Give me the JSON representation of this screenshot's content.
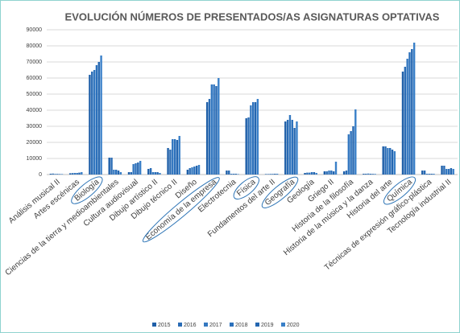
{
  "chart_data": {
    "type": "bar",
    "title": "EVOLUCIÓN NÚMEROS DE PRESENTADOS/AS ASIGNATURAS OPTATIVAS",
    "categories": [
      "Análisis musical II",
      "Artes escénicas",
      "Biología",
      "Ciencias de la tierra y medioambientales",
      "Cultura audiovisual",
      "Dibujo artístico II",
      "Dibujo técnico II",
      "Diseño",
      "Economía de la empresa",
      "Electrotecnia",
      "Física",
      "Fundamentos del arte II",
      "Geografía",
      "Geología",
      "Griego II",
      "Historia de la filosofía",
      "Historia de la música y la danza",
      "Historia del arte",
      "Química",
      "Técnicas de expresión gráfico-plástica",
      "Tecnología industrial II"
    ],
    "series": [
      {
        "name": "2015",
        "color": "#1f5fa8",
        "values": [
          500,
          800,
          62000,
          10500,
          1500,
          3500,
          16500,
          3000,
          45000,
          2500,
          35000,
          300,
          33000,
          1000,
          2000,
          2000,
          500,
          17500,
          64000,
          2500,
          5500
        ]
      },
      {
        "name": "2016",
        "color": "#2a6cb5",
        "values": [
          600,
          900,
          64000,
          10500,
          1500,
          4000,
          15500,
          4000,
          47000,
          2500,
          35500,
          300,
          34000,
          1200,
          2000,
          2500,
          500,
          17500,
          67000,
          2500,
          5500
        ]
      },
      {
        "name": "2017",
        "color": "#3478c0",
        "values": [
          400,
          1000,
          65000,
          3000,
          6500,
          1500,
          22000,
          4500,
          56000,
          500,
          43000,
          400,
          37000,
          1200,
          2500,
          25000,
          600,
          16500,
          72000,
          500,
          3500
        ]
      },
      {
        "name": "2018",
        "color": "#2b70bb",
        "values": [
          400,
          1000,
          68000,
          3000,
          7000,
          1500,
          22000,
          5000,
          56000,
          500,
          45000,
          400,
          34000,
          1500,
          2500,
          27000,
          500,
          16500,
          76000,
          500,
          3500
        ]
      },
      {
        "name": "2019",
        "color": "#2466b0",
        "values": [
          300,
          1200,
          70000,
          2500,
          7500,
          1500,
          21500,
          5500,
          55000,
          500,
          45000,
          500,
          29000,
          1500,
          2000,
          30000,
          400,
          15500,
          78000,
          500,
          4000
        ]
      },
      {
        "name": "2020",
        "color": "#3a80c8",
        "values": [
          300,
          1500,
          74000,
          1500,
          8500,
          1000,
          24000,
          6000,
          60000,
          300,
          47000,
          500,
          33000,
          1000,
          8000,
          40500,
          400,
          14500,
          82000,
          500,
          3500
        ]
      }
    ],
    "ylim": [
      0,
      90000
    ],
    "yticks": [
      0,
      10000,
      20000,
      30000,
      40000,
      50000,
      60000,
      70000,
      80000,
      90000
    ],
    "grid": true,
    "legend": "bottom"
  }
}
